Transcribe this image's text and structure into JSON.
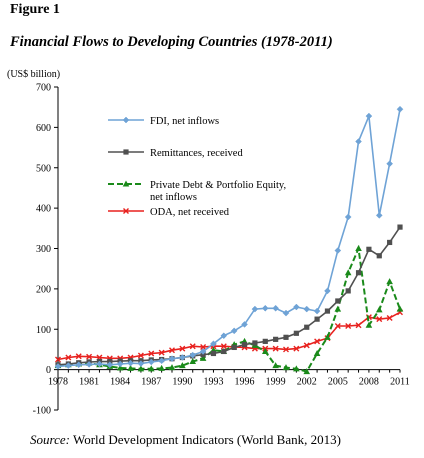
{
  "figure_label": "Figure 1",
  "title": "Financial Flows to Developing Countries (1978-2011)",
  "source": {
    "lead": "Source:",
    "text": " World Development Indicators (World Bank, 2013)"
  },
  "chart_data": {
    "type": "line",
    "title": "Financial Flows to Developing Countries (1978-2011)",
    "ylabel": "(US$ billion)",
    "xlabel": "",
    "ylim": [
      -100,
      700
    ],
    "yticks": [
      -100,
      0,
      100,
      200,
      300,
      400,
      500,
      600,
      700
    ],
    "xlim": [
      1978,
      2011
    ],
    "xticks": [
      1978,
      1981,
      1984,
      1987,
      1990,
      1993,
      1996,
      1999,
      2002,
      2005,
      2008,
      2011
    ],
    "legend_position": "top-left",
    "grid": false,
    "x": [
      1978,
      1979,
      1980,
      1981,
      1982,
      1983,
      1984,
      1985,
      1986,
      1987,
      1988,
      1989,
      1990,
      1991,
      1992,
      1993,
      1994,
      1995,
      1996,
      1997,
      1998,
      1999,
      2000,
      2001,
      2002,
      2003,
      2004,
      2005,
      2006,
      2007,
      2008,
      2009,
      2010,
      2011
    ],
    "series": [
      {
        "name": "FDI, net inflows",
        "color": "#6fa3d6",
        "marker": "diamond",
        "dash": "solid",
        "values": [
          8,
          10,
          12,
          13,
          14,
          12,
          14,
          16,
          15,
          19,
          22,
          27,
          30,
          36,
          45,
          64,
          84,
          96,
          112,
          150,
          152,
          152,
          140,
          155,
          150,
          145,
          195,
          295,
          378,
          565,
          628,
          382,
          510,
          645
        ]
      },
      {
        "name": "Remittances, received",
        "color": "#505050",
        "marker": "square",
        "dash": "solid",
        "values": [
          12,
          14,
          17,
          19,
          20,
          20,
          21,
          22,
          22,
          24,
          25,
          27,
          30,
          34,
          37,
          40,
          45,
          55,
          62,
          66,
          70,
          75,
          80,
          90,
          105,
          125,
          145,
          170,
          195,
          240,
          298,
          282,
          315,
          353
        ]
      },
      {
        "name": "Private Debt & Portfolio Equity, net inflows",
        "color": "#1a8a1a",
        "marker": "triangle",
        "dash": "dashed",
        "values": [
          10,
          12,
          14,
          16,
          12,
          8,
          4,
          3,
          2,
          2,
          3,
          5,
          10,
          20,
          28,
          48,
          45,
          62,
          70,
          60,
          45,
          10,
          5,
          2,
          -5,
          40,
          80,
          150,
          240,
          300,
          110,
          148,
          218,
          150
        ]
      },
      {
        "name": "ODA, net received",
        "color": "#e8211e",
        "marker": "x",
        "dash": "solid",
        "values": [
          25,
          30,
          33,
          32,
          30,
          28,
          28,
          30,
          35,
          40,
          42,
          48,
          52,
          58,
          56,
          58,
          58,
          56,
          55,
          52,
          52,
          52,
          50,
          52,
          60,
          70,
          78,
          108,
          108,
          110,
          130,
          125,
          128,
          142
        ]
      }
    ]
  }
}
